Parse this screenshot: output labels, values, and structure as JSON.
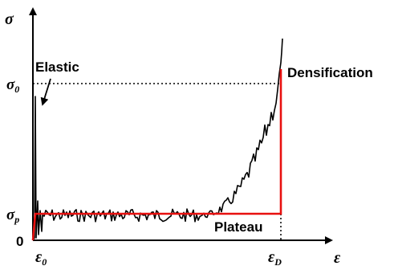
{
  "axes": {
    "y_label": "σ",
    "x_label": "ε",
    "origin_label": "0"
  },
  "levels": {
    "sigma0": {
      "symbol": "σ",
      "subscript": "0"
    },
    "sigmap": {
      "symbol": "σ",
      "subscript": "p"
    }
  },
  "strains": {
    "eps0": {
      "symbol": "ε",
      "subscript": "0"
    },
    "epsD": {
      "symbol": "ε",
      "subscript": "D"
    }
  },
  "annotations": {
    "elastic": "Elastic",
    "plateau": "Plateau",
    "densification": "Densification"
  },
  "colors": {
    "ideal_curve": "#e8100f",
    "measured_curve": "#000000",
    "axes": "#000000"
  }
}
